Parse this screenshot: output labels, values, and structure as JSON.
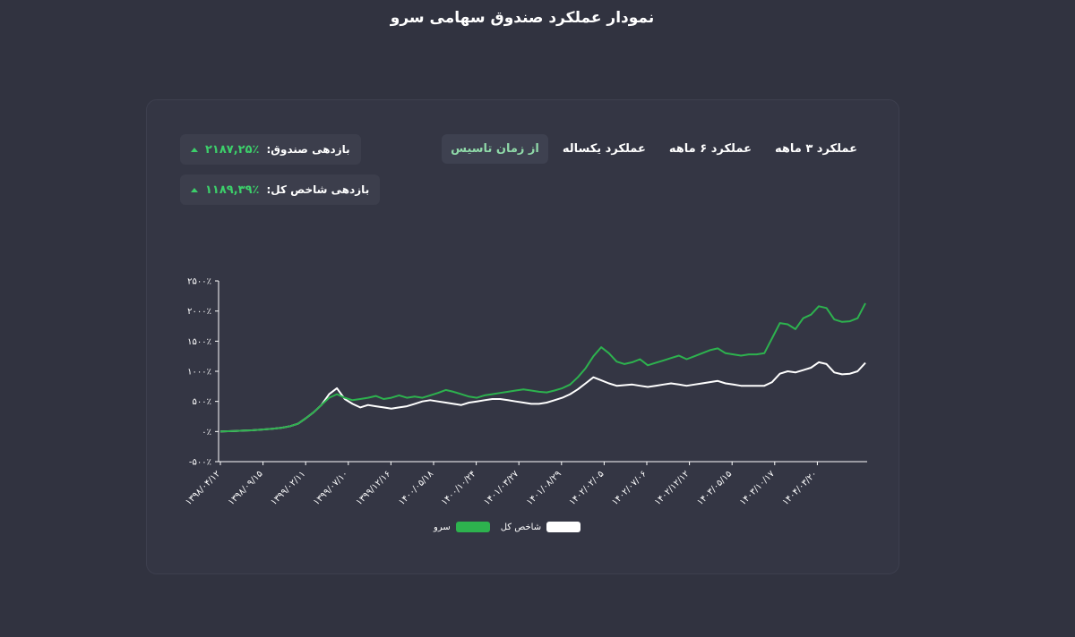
{
  "page": {
    "title": "نمودار عملکرد صندوق سهامی سرو"
  },
  "tabs": [
    {
      "label": "از زمان تاسیس",
      "active": true
    },
    {
      "label": "عملکرد یکساله",
      "active": false
    },
    {
      "label": "عملکرد ۶ ماهه",
      "active": false
    },
    {
      "label": "عملکرد ۳ ماهه",
      "active": false
    }
  ],
  "stats": {
    "fund": {
      "label": "بازدهی صندوق:",
      "value": "۲۱۸۷,۲۵٪"
    },
    "index": {
      "label": "بازدهی شاخص کل:",
      "value": "۱۱۸۹,۳۹٪"
    }
  },
  "colors": {
    "fund": "#2db24e",
    "index": "#ffffff",
    "accent": "#3ccf6a",
    "axis": "#ffffff"
  },
  "chart_data": {
    "type": "line",
    "ylim": [
      -500,
      2500
    ],
    "y_ticks": [
      -500,
      0,
      500,
      1000,
      1500,
      2000,
      2500
    ],
    "y_tick_labels": [
      "-۵۰۰٪",
      "۰٪",
      "۵۰۰٪",
      "۱۰۰۰٪",
      "۱۵۰۰٪",
      "۲۰۰۰٪",
      "۲۵۰۰٪"
    ],
    "x_tick_labels": [
      "۱۳۹۸/۰۴/۱۲",
      "۱۳۹۸/۰۹/۱۵",
      "۱۳۹۹/۰۲/۱۱",
      "۱۳۹۹/۰۷/۱۰",
      "۱۳۹۹/۱۲/۱۶",
      "۱۴۰۰/۰۵/۱۸",
      "۱۴۰۰/۱۰/۲۴",
      "۱۴۰۱/۰۳/۲۷",
      "۱۴۰۱/۰۸/۲۹",
      "۱۴۰۲/۰۲/۰۵",
      "۱۴۰۲/۰۷/۰۶",
      "۱۴۰۲/۱۲/۱۲",
      "۱۴۰۳/۰۵/۱۵",
      "۱۴۰۳/۱۰/۱۷",
      "۱۴۰۴/۰۳/۲۰"
    ],
    "legend": [
      "سرو",
      "شاخص کل"
    ],
    "series": [
      {
        "name": "سرو",
        "values": [
          0,
          5,
          10,
          15,
          20,
          28,
          38,
          50,
          65,
          90,
          130,
          220,
          320,
          440,
          560,
          620,
          560,
          520,
          540,
          560,
          590,
          540,
          560,
          600,
          560,
          580,
          560,
          600,
          640,
          690,
          660,
          620,
          580,
          560,
          600,
          620,
          640,
          660,
          680,
          700,
          680,
          660,
          650,
          680,
          720,
          780,
          900,
          1050,
          1250,
          1400,
          1300,
          1160,
          1120,
          1150,
          1200,
          1100,
          1140,
          1180,
          1220,
          1260,
          1200,
          1250,
          1300,
          1350,
          1380,
          1300,
          1280,
          1260,
          1280,
          1280,
          1300,
          1550,
          1800,
          1780,
          1700,
          1880,
          1940,
          2080,
          2050,
          1860,
          1820,
          1830,
          1880,
          2130
        ]
      },
      {
        "name": "شاخص کل",
        "values": [
          0,
          5,
          10,
          15,
          20,
          28,
          38,
          50,
          65,
          90,
          130,
          220,
          320,
          440,
          620,
          720,
          540,
          460,
          400,
          440,
          420,
          400,
          380,
          400,
          420,
          460,
          500,
          520,
          500,
          480,
          460,
          440,
          480,
          500,
          520,
          540,
          540,
          520,
          500,
          480,
          460,
          460,
          480,
          520,
          560,
          620,
          700,
          800,
          900,
          850,
          800,
          760,
          770,
          780,
          760,
          740,
          760,
          780,
          800,
          780,
          760,
          780,
          800,
          820,
          840,
          800,
          780,
          760,
          760,
          760,
          760,
          820,
          960,
          1000,
          980,
          1020,
          1060,
          1150,
          1120,
          980,
          950,
          960,
          1000,
          1140
        ]
      }
    ]
  }
}
